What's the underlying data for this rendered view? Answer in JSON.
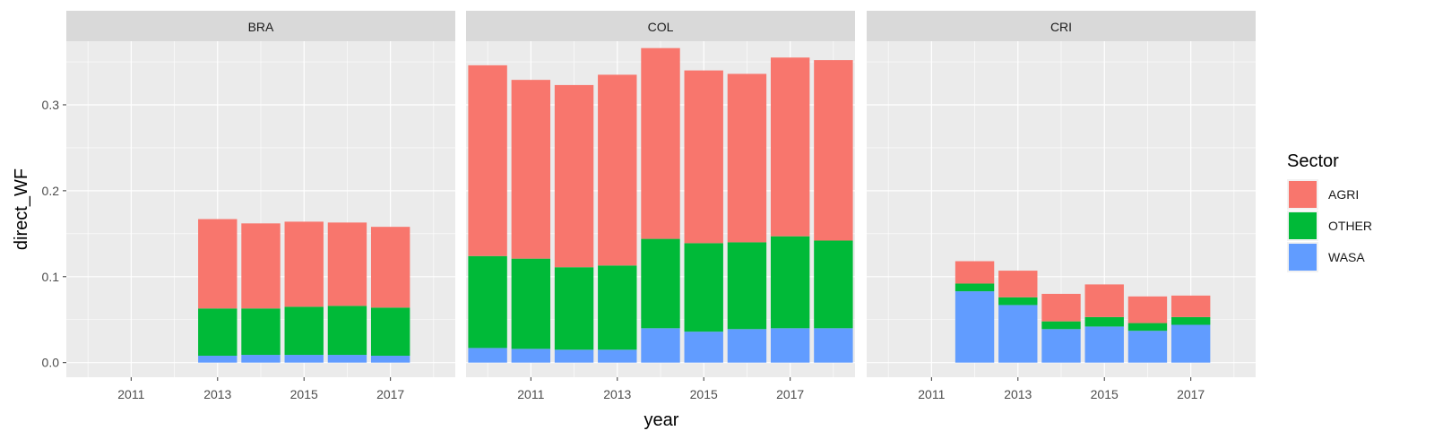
{
  "chart_data": {
    "type": "bar",
    "stacked": true,
    "facet_by": "country",
    "xlabel": "year",
    "ylabel": "direct_WF",
    "xlim": [
      2009.5,
      2018.5
    ],
    "ylim": [
      -0.017,
      0.374
    ],
    "x_ticks": [
      "2011",
      "2013",
      "2015",
      "2017"
    ],
    "y_ticks": [
      "0.0",
      "0.1",
      "0.2",
      "0.3"
    ],
    "grid": true,
    "legend": {
      "title": "Sector",
      "position": "right",
      "entries": [
        "AGRI",
        "OTHER",
        "WASA"
      ]
    },
    "colors": {
      "AGRI": "#F8766D",
      "OTHER": "#00BA38",
      "WASA": "#619CFF"
    },
    "panels": [
      {
        "name": "BRA",
        "years": [
          2013,
          2014,
          2015,
          2016,
          2017
        ],
        "series": [
          {
            "name": "WASA",
            "values": [
              0.008,
              0.009,
              0.009,
              0.009,
              0.008
            ]
          },
          {
            "name": "OTHER",
            "values": [
              0.055,
              0.054,
              0.056,
              0.057,
              0.056
            ]
          },
          {
            "name": "AGRI",
            "values": [
              0.104,
              0.099,
              0.099,
              0.097,
              0.094
            ]
          }
        ]
      },
      {
        "name": "COL",
        "years": [
          2010,
          2011,
          2012,
          2013,
          2014,
          2015,
          2016,
          2017,
          2018
        ],
        "series": [
          {
            "name": "WASA",
            "values": [
              0.017,
              0.016,
              0.015,
              0.015,
              0.04,
              0.036,
              0.039,
              0.04,
              0.04
            ]
          },
          {
            "name": "OTHER",
            "values": [
              0.107,
              0.105,
              0.096,
              0.098,
              0.104,
              0.103,
              0.101,
              0.107,
              0.102
            ]
          },
          {
            "name": "AGRI",
            "values": [
              0.222,
              0.208,
              0.212,
              0.222,
              0.222,
              0.201,
              0.196,
              0.208,
              0.21
            ]
          }
        ]
      },
      {
        "name": "CRI",
        "years": [
          2012,
          2013,
          2014,
          2015,
          2016,
          2017
        ],
        "series": [
          {
            "name": "WASA",
            "values": [
              0.083,
              0.067,
              0.039,
              0.042,
              0.037,
              0.044
            ]
          },
          {
            "name": "OTHER",
            "values": [
              0.009,
              0.009,
              0.009,
              0.011,
              0.009,
              0.009
            ]
          },
          {
            "name": "AGRI",
            "values": [
              0.026,
              0.031,
              0.032,
              0.038,
              0.031,
              0.025
            ]
          }
        ]
      }
    ]
  }
}
